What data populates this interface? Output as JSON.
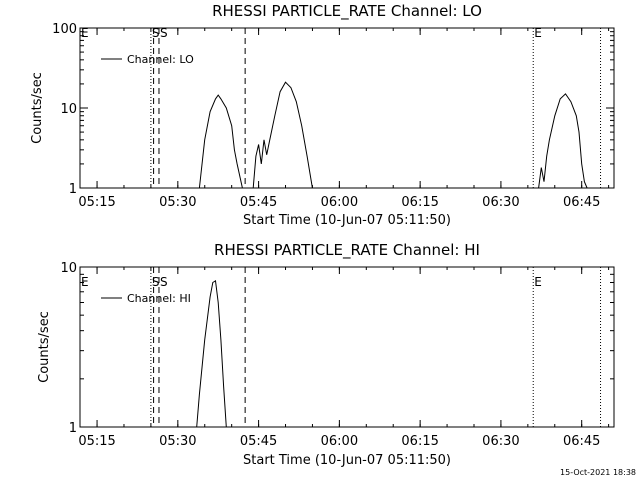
{
  "chart_data": [
    {
      "type": "line",
      "title": "RHESSI PARTICLE_RATE Channel: LO",
      "xlabel": "Start Time (10-Jun-07 05:11:50)",
      "ylabel": "Counts/sec",
      "y_scale": "log",
      "ylim": [
        1,
        100
      ],
      "xlim": [
        "05:11:50",
        "06:51:00"
      ],
      "x_ticks": [
        "05:15",
        "05:30",
        "05:45",
        "06:00",
        "06:15",
        "06:30",
        "06:45"
      ],
      "y_ticks": [
        "1",
        "10",
        "100"
      ],
      "legend": "top-left",
      "series": [
        {
          "name": "Channel: LO",
          "points": [
            [
              "05:34:00",
              1.0
            ],
            [
              "05:35:00",
              4.0
            ],
            [
              "05:36:00",
              9.0
            ],
            [
              "05:37:00",
              13.0
            ],
            [
              "05:37:30",
              14.5
            ],
            [
              "05:38:00",
              13.0
            ],
            [
              "05:39:00",
              10.0
            ],
            [
              "05:40:00",
              6.0
            ],
            [
              "05:40:30",
              3.0
            ],
            [
              "05:41:00",
              2.0
            ],
            [
              "05:42:00",
              1.0
            ],
            [
              "05:44:00",
              1.0
            ],
            [
              "05:44:30",
              2.5
            ],
            [
              "05:45:00",
              3.5
            ],
            [
              "05:45:30",
              2.0
            ],
            [
              "05:46:00",
              4.0
            ],
            [
              "05:46:30",
              2.6
            ],
            [
              "05:47:00",
              3.8
            ],
            [
              "05:48:00",
              8.0
            ],
            [
              "05:49:00",
              16.0
            ],
            [
              "05:50:00",
              21.0
            ],
            [
              "05:51:00",
              18.0
            ],
            [
              "05:52:00",
              12.0
            ],
            [
              "05:53:00",
              6.0
            ],
            [
              "05:54:00",
              2.5
            ],
            [
              "05:55:00",
              1.0
            ],
            [
              "06:37:00",
              1.0
            ],
            [
              "06:37:30",
              1.8
            ],
            [
              "06:38:00",
              1.2
            ],
            [
              "06:38:30",
              2.5
            ],
            [
              "06:39:00",
              4.0
            ],
            [
              "06:40:00",
              8.0
            ],
            [
              "06:41:00",
              13.0
            ],
            [
              "06:42:00",
              15.0
            ],
            [
              "06:43:00",
              12.0
            ],
            [
              "06:44:00",
              8.0
            ],
            [
              "06:44:30",
              5.0
            ],
            [
              "06:45:00",
              2.0
            ],
            [
              "06:45:30",
              1.2
            ],
            [
              "06:46:00",
              1.0
            ]
          ]
        }
      ],
      "markers": [
        {
          "label": "E",
          "time": "05:11:50",
          "style": "dotted"
        },
        {
          "label": "S",
          "time": "05:25:00",
          "style": "dotted"
        },
        {
          "label": "",
          "time": "05:25:30",
          "style": "dashed"
        },
        {
          "label": "S",
          "time": "05:26:30",
          "style": "dashed"
        },
        {
          "label": "",
          "time": "05:42:30",
          "style": "dashed"
        },
        {
          "label": "E",
          "time": "06:36:00",
          "style": "dotted"
        },
        {
          "label": "",
          "time": "06:48:30",
          "style": "dotted"
        }
      ]
    },
    {
      "type": "line",
      "title": "RHESSI PARTICLE_RATE Channel: HI",
      "xlabel": "Start Time (10-Jun-07 05:11:50)",
      "ylabel": "Counts/sec",
      "y_scale": "log",
      "ylim": [
        1,
        10
      ],
      "xlim": [
        "05:11:50",
        "06:51:00"
      ],
      "x_ticks": [
        "05:15",
        "05:30",
        "05:45",
        "06:00",
        "06:15",
        "06:30",
        "06:45"
      ],
      "y_ticks": [
        "1",
        "10"
      ],
      "legend": "top-left",
      "series": [
        {
          "name": "Channel: HI",
          "points": [
            [
              "05:33:30",
              1.0
            ],
            [
              "05:34:00",
              1.6
            ],
            [
              "05:35:00",
              3.5
            ],
            [
              "05:36:00",
              6.5
            ],
            [
              "05:36:30",
              8.0
            ],
            [
              "05:37:00",
              8.2
            ],
            [
              "05:37:30",
              6.0
            ],
            [
              "05:38:00",
              3.5
            ],
            [
              "05:38:30",
              1.8
            ],
            [
              "05:39:00",
              1.0
            ]
          ]
        }
      ],
      "markers": [
        {
          "label": "E",
          "time": "05:11:50",
          "style": "dotted"
        },
        {
          "label": "S",
          "time": "05:25:00",
          "style": "dotted"
        },
        {
          "label": "",
          "time": "05:25:30",
          "style": "dashed"
        },
        {
          "label": "S",
          "time": "05:26:30",
          "style": "dashed"
        },
        {
          "label": "",
          "time": "05:42:30",
          "style": "dashed"
        },
        {
          "label": "E",
          "time": "06:36:00",
          "style": "dotted"
        },
        {
          "label": "",
          "time": "06:48:30",
          "style": "dotted"
        }
      ]
    }
  ],
  "footer": {
    "timestamp": "15-Oct-2021 18:38"
  }
}
